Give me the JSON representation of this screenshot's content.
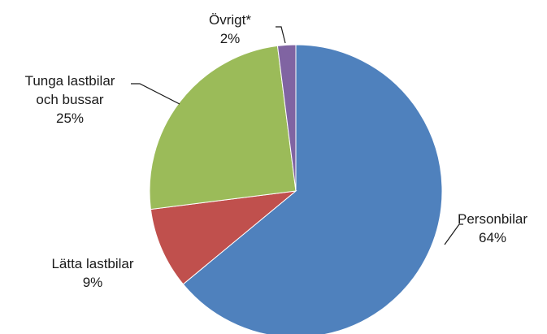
{
  "chart_data": {
    "type": "pie",
    "slices": [
      {
        "label_lines": [
          "Personbilar"
        ],
        "percent_label": "64%",
        "value": 64,
        "color": "#4f81bd"
      },
      {
        "label_lines": [
          "Lätta lastbilar"
        ],
        "percent_label": "9%",
        "value": 9,
        "color": "#c0504d"
      },
      {
        "label_lines": [
          "Tunga lastbilar",
          "och bussar"
        ],
        "percent_label": "25%",
        "value": 25,
        "color": "#9bbb59"
      },
      {
        "label_lines": [
          "Övrigt*"
        ],
        "percent_label": "2%",
        "value": 2,
        "color": "#8064a2"
      }
    ],
    "start_angle": "12 o'clock",
    "direction": "clockwise",
    "legend": "none"
  }
}
